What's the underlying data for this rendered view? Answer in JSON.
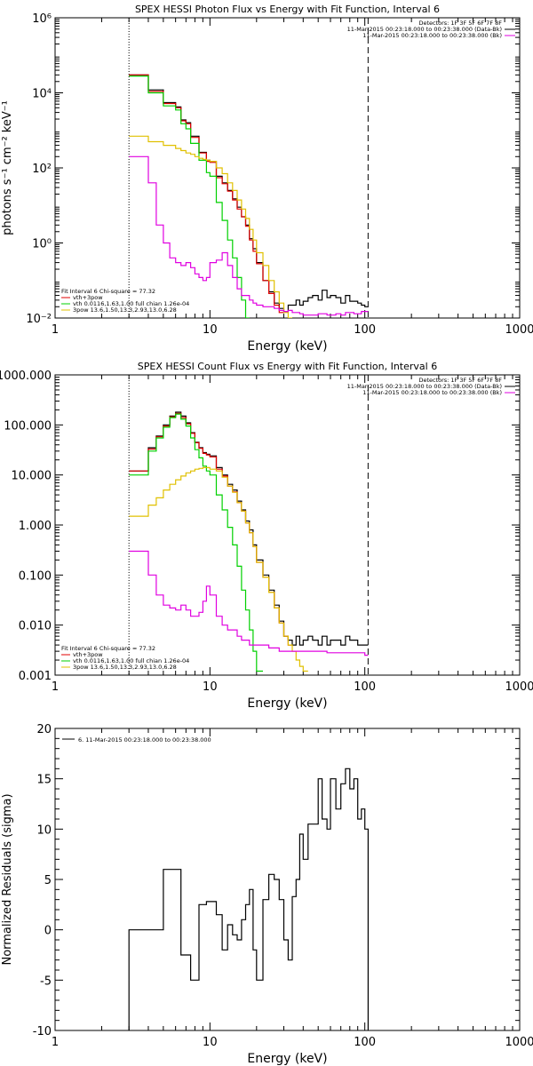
{
  "chart_data": [
    {
      "type": "line",
      "title": "SPEX HESSI Photon Flux vs Energy with Fit Function, Interval 6",
      "xlabel": "Energy (keV)",
      "ylabel": "photons s⁻¹ cm⁻² keV⁻¹",
      "xscale": "log",
      "yscale": "log",
      "xlim": [
        1,
        1000
      ],
      "ylim": [
        0.01,
        1000000
      ],
      "xticks": [
        "1",
        "10",
        "100",
        "1000"
      ],
      "yticks": [
        "10⁻²",
        "10⁰",
        "10²",
        "10⁴",
        "10⁶"
      ],
      "vlines": [
        {
          "x": 3,
          "style": "dotted"
        },
        {
          "x": 105,
          "style": "dashed"
        }
      ],
      "legend_top": [
        {
          "text": "Detectors: 1F 3F 5F 6F 7F 8F",
          "color": "#000000"
        },
        {
          "text": "11-Mar-2015 00:23:18.000 to 00:23:38.000 (Data-Bk)",
          "color": "#000000"
        },
        {
          "text": "11-Mar-2015 00:23:18.000 to 00:23:38.000 (Bk)",
          "color": "#e000e0"
        }
      ],
      "legend_bottom": [
        {
          "text": "Fit Interval 6   Chi-square = 77.32",
          "color": "#000000"
        },
        {
          "text": "vth+3pow",
          "color": "#e00000"
        },
        {
          "text": "vth 0.0116,1.63,1.00  full chian 1.26e-04",
          "color": "#00d000"
        },
        {
          "text": "3pow 13.6,1.50,13.3,2.93,13.0,6.28",
          "color": "#e0c000"
        }
      ],
      "edges": [
        3,
        3.5,
        4,
        4.5,
        5,
        5.5,
        6,
        6.5,
        7,
        7.5,
        8,
        8.5,
        9,
        9.5,
        10,
        11,
        12,
        13,
        14,
        15,
        16,
        17,
        18,
        19,
        20,
        22,
        24,
        26,
        28,
        30,
        32,
        34,
        36,
        38,
        40,
        43,
        46,
        50,
        53,
        57,
        60,
        65,
        70,
        75,
        80,
        85,
        90,
        95,
        100,
        105
      ],
      "series": [
        {
          "name": "Data-Bk",
          "color": "#000000",
          "values": [
            30000,
            30000,
            12000,
            12000,
            5500,
            5500,
            4200,
            1900,
            1600,
            700,
            700,
            260,
            260,
            160,
            150,
            60,
            40,
            25,
            15,
            9,
            5,
            3,
            1.3,
            0.7,
            0.3,
            0.1,
            0.05,
            0.025,
            0.018,
            0.015,
            0.022,
            0.022,
            0.03,
            0.022,
            0.028,
            0.035,
            0.04,
            0.03,
            0.055,
            0.035,
            0.04,
            0.035,
            0.025,
            0.04,
            0.028,
            0.028,
            0.025,
            0.022,
            0.02
          ]
        },
        {
          "name": "vth+3pow",
          "color": "#e00000",
          "values": [
            30000,
            30000,
            11000,
            11000,
            5200,
            5200,
            4000,
            1800,
            1500,
            650,
            650,
            250,
            250,
            150,
            140,
            55,
            38,
            24,
            14,
            8,
            5,
            2.8,
            1.2,
            0.6,
            0.28,
            0.1,
            0.045,
            0.022,
            0.014
          ]
        },
        {
          "name": "vth",
          "color": "#00d000",
          "values": [
            28000,
            28000,
            10000,
            10000,
            4500,
            4500,
            3500,
            1500,
            1100,
            450,
            450,
            160,
            160,
            75,
            60,
            12,
            4,
            1.2,
            0.4,
            0.12,
            0.03,
            0.01
          ]
        },
        {
          "name": "3pow",
          "color": "#e0c000",
          "values": [
            700,
            700,
            500,
            500,
            400,
            400,
            330,
            290,
            250,
            230,
            200,
            180,
            170,
            160,
            150,
            100,
            70,
            40,
            25,
            14,
            8,
            4.5,
            2.3,
            1.2,
            0.55,
            0.25,
            0.1,
            0.05,
            0.025,
            0.014,
            0.01
          ]
        },
        {
          "name": "Bk",
          "color": "#e000e0",
          "values": [
            200,
            200,
            40,
            3,
            1,
            0.4,
            0.3,
            0.25,
            0.3,
            0.22,
            0.15,
            0.12,
            0.1,
            0.12,
            0.3,
            0.35,
            0.55,
            0.25,
            0.12,
            0.06,
            0.04,
            0.04,
            0.03,
            0.025,
            0.022,
            0.02,
            0.02,
            0.018,
            0.016,
            0.015,
            0.016,
            0.014,
            0.014,
            0.013,
            0.012,
            0.012,
            0.012,
            0.013,
            0.013,
            0.012,
            0.012,
            0.013,
            0.012,
            0.014,
            0.014,
            0.013,
            0.013,
            0.015,
            0.015
          ]
        }
      ]
    },
    {
      "type": "line",
      "title": "SPEX HESSI Count Flux vs Energy with Fit Function, Interval 6",
      "xlabel": "Energy (keV)",
      "ylabel": "",
      "xscale": "log",
      "yscale": "log",
      "xlim": [
        1,
        1000
      ],
      "ylim": [
        0.001,
        1000
      ],
      "xticks": [
        "1",
        "10",
        "100",
        "1000"
      ],
      "yticks": [
        "0.001",
        "0.010",
        "0.100",
        "1.000",
        "10.000",
        "100.000",
        "1000.000"
      ],
      "vlines": [
        {
          "x": 3,
          "style": "dotted"
        },
        {
          "x": 105,
          "style": "dashed"
        }
      ],
      "legend_top": [
        {
          "text": "Detectors: 1F 3F 5F 6F 7F 8F",
          "color": "#000000"
        },
        {
          "text": "11-Mar-2015 00:23:18.000 to 00:23:38.000 (Data-Bk)",
          "color": "#000000"
        },
        {
          "text": "11-Mar-2015 00:23:18.000 to 00:23:38.000 (Bk)",
          "color": "#e000e0"
        }
      ],
      "legend_bottom": [
        {
          "text": "Fit Interval 6   Chi-square = 77.32",
          "color": "#000000"
        },
        {
          "text": "vth+3pow",
          "color": "#e00000"
        },
        {
          "text": "vth 0.0116,1.63,1.00  full chian 1.26e-04",
          "color": "#00d000"
        },
        {
          "text": "3pow 13.6,1.50,13.3,2.93,13.0,6.28",
          "color": "#e0c000"
        }
      ],
      "edges": [
        3,
        3.5,
        4,
        4.5,
        5,
        5.5,
        6,
        6.5,
        7,
        7.5,
        8,
        8.5,
        9,
        9.5,
        10,
        11,
        12,
        13,
        14,
        15,
        16,
        17,
        18,
        19,
        20,
        22,
        24,
        26,
        28,
        30,
        32,
        34,
        36,
        38,
        40,
        43,
        46,
        50,
        53,
        57,
        60,
        65,
        70,
        75,
        80,
        85,
        90,
        95,
        100,
        105
      ],
      "series": [
        {
          "name": "Data-Bk",
          "color": "#000000",
          "values": [
            12,
            12,
            35,
            60,
            100,
            150,
            180,
            150,
            110,
            70,
            45,
            35,
            28,
            26,
            24,
            14,
            10,
            6.5,
            5,
            3,
            2,
            1.2,
            0.8,
            0.4,
            0.2,
            0.1,
            0.05,
            0.025,
            0.012,
            0.006,
            0.005,
            0.004,
            0.006,
            0.004,
            0.005,
            0.006,
            0.005,
            0.004,
            0.006,
            0.004,
            0.005,
            0.005,
            0.004,
            0.006,
            0.005,
            0.005,
            0.004,
            0.004,
            0.004
          ]
        },
        {
          "name": "vth+3pow",
          "color": "#e00000",
          "values": [
            12,
            12,
            33,
            58,
            95,
            145,
            170,
            140,
            105,
            68,
            44,
            34,
            27,
            25,
            23,
            13,
            9.5,
            6,
            4.6,
            2.8,
            1.9,
            1.1,
            0.7,
            0.37,
            0.18,
            0.09,
            0.045,
            0.022,
            0.011,
            0.006,
            0.004
          ]
        },
        {
          "name": "vth",
          "color": "#00d000",
          "values": [
            10,
            10,
            30,
            55,
            90,
            140,
            165,
            130,
            95,
            55,
            32,
            22,
            15,
            12,
            10,
            4,
            2,
            0.9,
            0.4,
            0.15,
            0.05,
            0.02,
            0.008,
            0.003,
            0.0012
          ]
        },
        {
          "name": "3pow",
          "color": "#e0c000",
          "values": [
            1.5,
            1.5,
            2.5,
            3.5,
            5,
            6.5,
            8,
            9.5,
            11,
            12,
            13,
            13.5,
            14,
            14,
            13,
            12,
            9,
            6,
            4.5,
            2.8,
            1.9,
            1.1,
            0.7,
            0.37,
            0.18,
            0.09,
            0.045,
            0.022,
            0.011,
            0.006,
            0.004,
            0.003,
            0.002,
            0.0015,
            0.0012
          ]
        },
        {
          "name": "Bk",
          "color": "#e000e0",
          "values": [
            0.3,
            0.3,
            0.1,
            0.04,
            0.025,
            0.022,
            0.02,
            0.025,
            0.02,
            0.015,
            0.015,
            0.018,
            0.03,
            0.06,
            0.04,
            0.015,
            0.01,
            0.008,
            0.008,
            0.006,
            0.005,
            0.005,
            0.004,
            0.004,
            0.004,
            0.004,
            0.0035,
            0.0035,
            0.003,
            0.003,
            0.003,
            0.003,
            0.003,
            0.003,
            0.003,
            0.003,
            0.003,
            0.003,
            0.003,
            0.0028,
            0.0028,
            0.0028,
            0.0028,
            0.0028,
            0.0028,
            0.0028,
            0.0028,
            0.0028,
            0.0025
          ]
        }
      ]
    },
    {
      "type": "line",
      "title": "",
      "xlabel": "Energy (keV)",
      "ylabel": "Normalized Residuals (sigma)",
      "xscale": "log",
      "yscale": "linear",
      "xlim": [
        1,
        1000
      ],
      "ylim": [
        -10,
        20
      ],
      "xticks": [
        "1",
        "10",
        "100",
        "1000"
      ],
      "yticks": [
        "-10",
        "-5",
        "0",
        "5",
        "10",
        "15",
        "20"
      ],
      "legend_top": [
        {
          "text": "6. 11-Mar-2015 00:23:18.000 to 00:23:38.000",
          "color": "#000000"
        }
      ],
      "edges": [
        3,
        3.5,
        4,
        4.5,
        5,
        5.5,
        6,
        6.5,
        7,
        7.5,
        8,
        8.5,
        9,
        9.5,
        10,
        11,
        12,
        13,
        14,
        15,
        16,
        17,
        18,
        19,
        20,
        22,
        24,
        26,
        28,
        30,
        32,
        34,
        36,
        38,
        40,
        43,
        46,
        50,
        53,
        57,
        60,
        65,
        70,
        75,
        80,
        85,
        90,
        95,
        100,
        105
      ],
      "series": [
        {
          "name": "residuals",
          "color": "#000000",
          "values": [
            0,
            0,
            0,
            0,
            6,
            6,
            6,
            -2.5,
            -2.5,
            -5,
            -5,
            2.5,
            2.5,
            2.8,
            2.8,
            1.5,
            -2,
            0.5,
            -0.5,
            -1,
            1,
            2.5,
            4,
            -2,
            -5,
            3,
            5.5,
            5,
            3,
            -1,
            -3,
            3.3,
            5,
            9.5,
            7,
            10.5,
            10.5,
            15,
            11,
            10,
            15,
            12,
            14.5,
            16,
            14,
            15,
            11,
            12,
            10
          ]
        }
      ]
    }
  ]
}
